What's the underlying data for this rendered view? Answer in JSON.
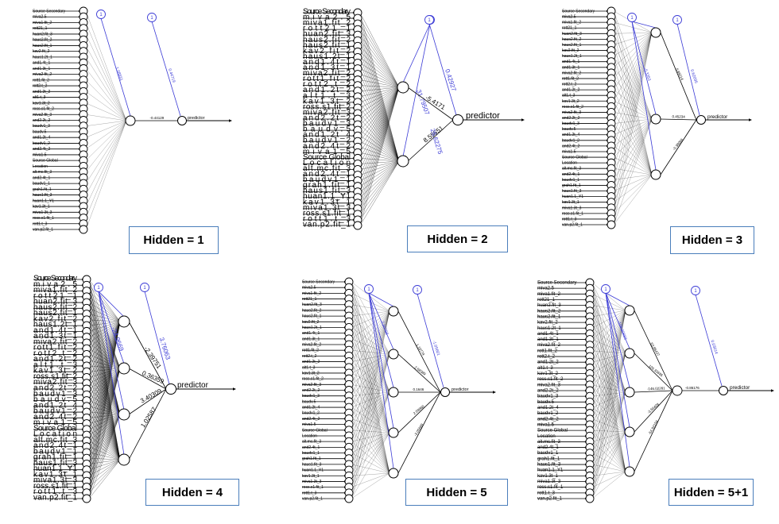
{
  "output_label": "predictor",
  "bias_symbol": "1",
  "input_vars": [
    "Source Secondary",
    "miva2.5",
    "miva1.fit_2",
    "rott21_1",
    "huan2.fit_3",
    "haus2.fit_2",
    "haus2.fit_1",
    "kav2.fit_2",
    "haus1.2t_1",
    "and1.4t_1",
    "and1.3t_1",
    "miva2.fit_2",
    "rott1.fit_2",
    "rott2.t_2",
    "and1.2t_2",
    "alt1.t_3",
    "kav1.3t_2",
    "ross.s1.fit_2",
    "miva2.fit_3",
    "and2.2t_2",
    "baudv1_3",
    "baudv.5",
    "and1.2t_4",
    "baudv1_2",
    "and2.4t_2",
    "miva1.5",
    "Source Global",
    "Location",
    "alt.mc.fit_3",
    "and2.4t_1",
    "baudv1_1",
    "grah1.fit_1",
    "haus1.fit_3",
    "huan1.1_Y1",
    "kav1.3t_1",
    "miva1.3t_3",
    "ross.s1.fit_1",
    "rott1.t_3",
    "van.p2.fit_1"
  ],
  "panels": [
    {
      "label": "Hidden = 1",
      "hidden_weights": [
        "-0.44129"
      ],
      "bias_hidden": "1.08831",
      "bias_output": "0.44719",
      "output_extra": ""
    },
    {
      "label": "Hidden = 2",
      "hidden_weights": [
        "-5.4171",
        "8.55651"
      ],
      "bias_hidden": "31.79507",
      "bias_output": "0.42927",
      "output_extra": "26.62275"
    },
    {
      "label": "Hidden = 3",
      "hidden_weights": [
        "0.89214",
        "0.45234",
        "-0.38066"
      ],
      "bias_hidden": "-0.3353",
      "bias_output": "0.62095",
      "output_extra": ""
    },
    {
      "label": "Hidden = 4",
      "hidden_weights": [
        "-2.39751",
        "0.36359",
        "3.40309",
        "1.02587"
      ],
      "bias_hidden": "-24.9669",
      "bias_output": "3.76063",
      "output_extra": ""
    },
    {
      "label": "Hidden = 5",
      "hidden_weights": [
        "1.10774",
        "2.68389",
        "0.1646",
        "2.09868",
        "-3.05669"
      ],
      "bias_hidden": "2.30798",
      "bias_output": "-1.05601",
      "output_extra": ""
    },
    {
      "label": "Hidden = 5+1",
      "hidden_weights": [
        "53.96437",
        "126.32685",
        "-146.02281",
        "-3.56428",
        "-54.92158"
      ],
      "bias_hidden": "-109.90683",
      "bias_output": "0.03014",
      "output_extra": "-0.86176"
    }
  ]
}
